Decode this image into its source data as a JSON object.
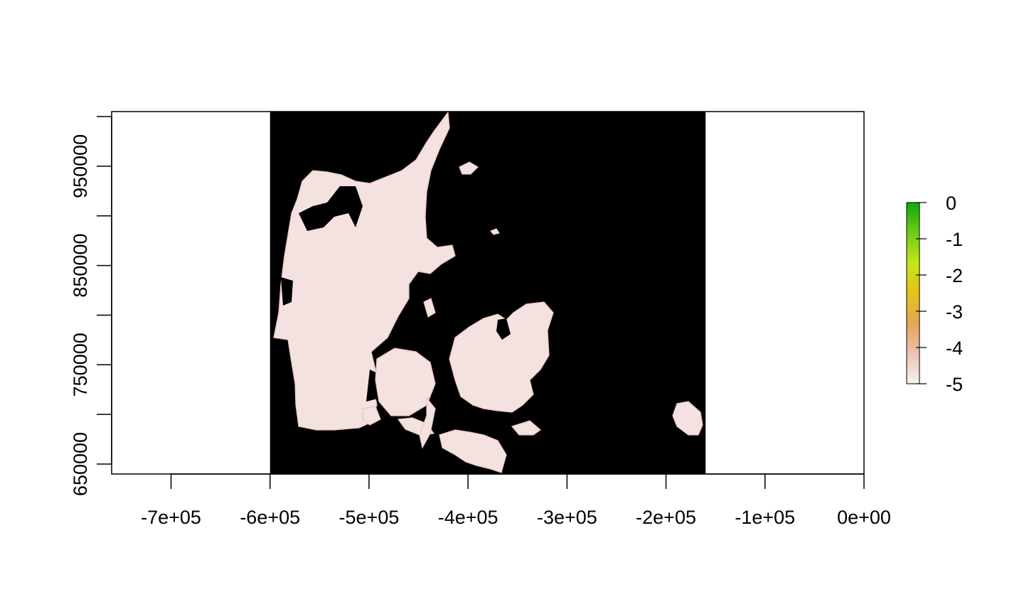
{
  "chart_data": {
    "type": "heatmap",
    "title": "",
    "xlabel": "",
    "ylabel": "",
    "xlim": [
      -760000,
      0
    ],
    "ylim": [
      640000,
      1005000
    ],
    "raster_extent": {
      "xmin": -600000,
      "xmax": -160000,
      "ymin": 640000,
      "ymax": 1005000
    },
    "x_ticks": [
      {
        "value": -700000,
        "label": "-7e+05"
      },
      {
        "value": -600000,
        "label": "-6e+05"
      },
      {
        "value": -500000,
        "label": "-5e+05"
      },
      {
        "value": -400000,
        "label": "-4e+05"
      },
      {
        "value": -300000,
        "label": "-3e+05"
      },
      {
        "value": -200000,
        "label": "-2e+05"
      },
      {
        "value": -100000,
        "label": "-1e+05"
      },
      {
        "value": 0,
        "label": "0e+00"
      }
    ],
    "y_ticks": [
      {
        "value": 650000,
        "label": "650000"
      },
      {
        "value": 700000,
        "label": ""
      },
      {
        "value": 750000,
        "label": "750000"
      },
      {
        "value": 800000,
        "label": ""
      },
      {
        "value": 850000,
        "label": "850000"
      },
      {
        "value": 900000,
        "label": ""
      },
      {
        "value": 950000,
        "label": "950000"
      },
      {
        "value": 1000000,
        "label": ""
      }
    ],
    "legend": {
      "placement": "right",
      "min": -5,
      "max": 0,
      "ticks": [
        {
          "value": 0,
          "label": "0"
        },
        {
          "value": -1,
          "label": "-1"
        },
        {
          "value": -2,
          "label": "-2"
        },
        {
          "value": -3,
          "label": "-3"
        },
        {
          "value": -4,
          "label": "-4"
        },
        {
          "value": -5,
          "label": "-5"
        }
      ],
      "colors": [
        "#f2f2f2",
        "#eec2b3",
        "#e6a456",
        "#e3c41a",
        "#c5e51b",
        "#6dcc17",
        "#0ea80e"
      ]
    },
    "colors": {
      "nodata": "#000000",
      "land": "#f3e2e0",
      "land_edge": "#ecc4bc"
    }
  }
}
